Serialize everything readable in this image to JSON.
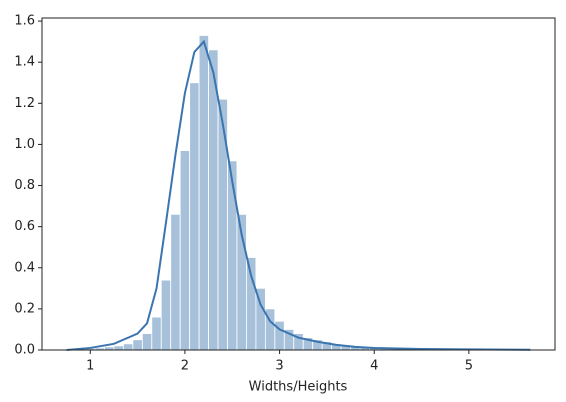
{
  "chart_data": {
    "type": "histogram",
    "xlabel": "Widths/Heights",
    "bins": [
      0.75,
      0.85,
      0.95,
      1.05,
      1.15,
      1.25,
      1.35,
      1.45,
      1.55,
      1.65,
      1.75,
      1.85,
      1.95,
      2.05,
      2.15,
      2.25,
      2.35,
      2.45,
      2.55,
      2.65,
      2.75,
      2.85,
      2.95,
      3.05,
      3.15,
      3.25,
      3.35,
      3.45,
      3.55,
      3.65,
      3.75,
      3.85,
      3.95,
      4.05,
      4.15,
      4.25,
      4.35,
      4.45,
      4.55,
      4.65,
      4.75,
      4.85,
      4.95,
      5.05,
      5.15,
      5.25,
      5.35,
      5.45,
      5.55,
      5.65
    ],
    "values": [
      0.003,
      0.005,
      0.008,
      0.01,
      0.015,
      0.02,
      0.03,
      0.05,
      0.08,
      0.16,
      0.34,
      0.66,
      0.97,
      1.3,
      1.53,
      1.46,
      1.22,
      0.92,
      0.66,
      0.45,
      0.3,
      0.2,
      0.14,
      0.1,
      0.08,
      0.06,
      0.05,
      0.04,
      0.03,
      0.025,
      0.02,
      0.015,
      0.012,
      0.01,
      0.008,
      0.007,
      0.006,
      0.005,
      0.005,
      0.004,
      0.004,
      0.003,
      0.003,
      0.003,
      0.002,
      0.002,
      0.002,
      0.002,
      0.002
    ],
    "color": "#3b75af",
    "bar_opacity": 0.45,
    "kde": {
      "x": [
        0.75,
        1.0,
        1.25,
        1.5,
        1.6,
        1.7,
        1.8,
        1.9,
        2.0,
        2.1,
        2.2,
        2.3,
        2.4,
        2.5,
        2.6,
        2.7,
        2.8,
        2.9,
        3.0,
        3.2,
        3.4,
        3.6,
        3.8,
        4.0,
        4.5,
        5.0,
        5.65
      ],
      "y": [
        0.0,
        0.01,
        0.03,
        0.08,
        0.13,
        0.3,
        0.62,
        0.95,
        1.25,
        1.45,
        1.5,
        1.35,
        1.1,
        0.82,
        0.56,
        0.36,
        0.22,
        0.14,
        0.1,
        0.06,
        0.04,
        0.025,
        0.015,
        0.01,
        0.005,
        0.003,
        0.001
      ]
    },
    "xlim": [
      0.49,
      5.91
    ],
    "ylim": [
      0,
      1.615
    ],
    "xticks": [
      1,
      2,
      3,
      4,
      5
    ],
    "yticks": [
      {
        "value": 0,
        "label": "0.0"
      },
      0.2,
      0.4,
      0.6,
      0.8,
      {
        "value": 1,
        "label": "1.0"
      },
      1.2,
      1.4,
      1.6
    ]
  }
}
